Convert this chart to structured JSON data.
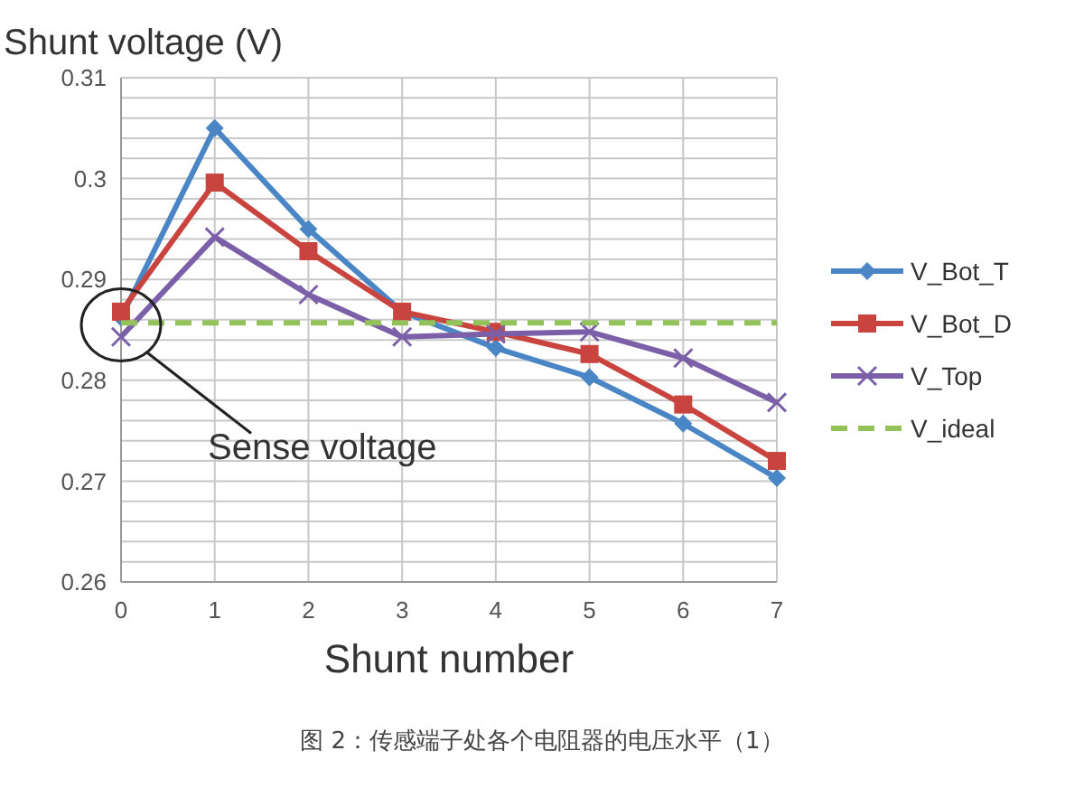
{
  "chart_data": {
    "type": "line",
    "ylabel": "Shunt voltage (V)",
    "xlabel": "Shunt number",
    "x": [
      0,
      1,
      2,
      3,
      4,
      5,
      6,
      7
    ],
    "xlim": [
      0,
      7
    ],
    "xticks": [
      0,
      1,
      2,
      3,
      4,
      5,
      6,
      7
    ],
    "ylim": [
      0.26,
      0.31
    ],
    "yticks": [
      0.26,
      {
        "value": 0.262,
        "label": null
      },
      {
        "value": 0.264,
        "label": null
      },
      {
        "value": 0.266,
        "label": null
      },
      {
        "value": 0.268,
        "label": null
      },
      0.27,
      {
        "value": 0.272,
        "label": null
      },
      {
        "value": 0.274,
        "label": null
      },
      {
        "value": 0.276,
        "label": null
      },
      {
        "value": 0.278,
        "label": null
      },
      0.28,
      {
        "value": 0.282,
        "label": null
      },
      {
        "value": 0.284,
        "label": null
      },
      {
        "value": 0.286,
        "label": null
      },
      {
        "value": 0.288,
        "label": null
      },
      0.29,
      {
        "value": 0.292,
        "label": null
      },
      {
        "value": 0.294,
        "label": null
      },
      {
        "value": 0.296,
        "label": null
      },
      {
        "value": 0.298,
        "label": null
      },
      0.3,
      {
        "value": 0.302,
        "label": null
      },
      {
        "value": 0.304,
        "label": null
      },
      {
        "value": 0.306,
        "label": null
      },
      {
        "value": 0.308,
        "label": null
      },
      0.31
    ],
    "grid": true,
    "legend": "right",
    "series": [
      {
        "name": "V_Bot_T",
        "color": "#4a86c5",
        "marker": "diamond",
        "values": [
          0.2862,
          0.305,
          0.295,
          0.2868,
          0.2832,
          0.2803,
          0.2757,
          0.2703
        ]
      },
      {
        "name": "V_Bot_D",
        "color": "#c9443f",
        "marker": "square",
        "values": [
          0.2868,
          0.2996,
          0.2928,
          0.2868,
          0.2848,
          0.2826,
          0.2776,
          0.272
        ]
      },
      {
        "name": "V_Top",
        "color": "#7b5fa8",
        "marker": "cross",
        "values": [
          0.2843,
          0.2942,
          0.2885,
          0.2843,
          0.2846,
          0.2848,
          0.2822,
          0.2778
        ]
      },
      {
        "name": "V_ideal",
        "color": "#93c25a",
        "marker": "none",
        "line_style": "dashed",
        "values": [
          0.2857,
          0.2857,
          0.2857,
          0.2857,
          0.2857,
          0.2857,
          0.2857,
          0.2857
        ]
      }
    ],
    "annotations": [
      {
        "text": "Sense voltage",
        "x": 0.27,
        "y": 0.2828
      },
      "图 2：传感端子处各个电阻器的电压水平（1）"
    ]
  }
}
